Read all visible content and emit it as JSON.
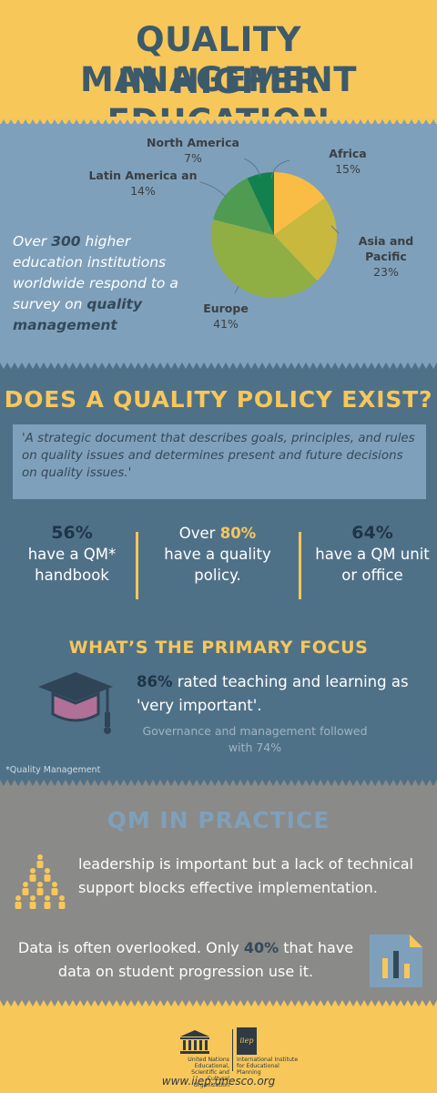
{
  "header": {
    "title_line1": "QUALITY MANAGEMENT",
    "title_line2": "IN HIGHER EDUCATION"
  },
  "survey": {
    "intro_pre": "Over ",
    "intro_num": "300",
    "intro_mid": " higher education institutions worldwide respond to a survey on ",
    "intro_bold": "quality management",
    "chart_data": {
      "type": "pie",
      "slices": [
        {
          "label": "Africa",
          "value_label": "15%",
          "value": 15,
          "color": "#f9bd45"
        },
        {
          "label": "Asia and Pacific",
          "value_label": "23%",
          "value": 23,
          "color": "#c8b83e"
        },
        {
          "label": "Europe",
          "value_label": "41%",
          "value": 41,
          "color": "#8fae43"
        },
        {
          "label": "Latin America an",
          "value_label": "14%",
          "value": 14,
          "color": "#4f9b52"
        },
        {
          "label": "North America",
          "value_label": "7%",
          "value": 7,
          "color": "#12814d"
        }
      ]
    }
  },
  "policy": {
    "title": "DOES A QUALITY POLICY EXIST?",
    "quote": "'A strategic document that describes goals, principles, and rules on quality issues and determines present and future decisions on quality issues.'",
    "stats": [
      {
        "num": "56%",
        "text_line1": "have a QM*",
        "text_line2": "handbook"
      },
      {
        "prefix": "Over ",
        "num": "80%",
        "text_line1": "have a quality",
        "text_line2": "policy."
      },
      {
        "num": "64%",
        "text_line1": "have a  QM unit",
        "text_line2": "or office"
      }
    ],
    "focus_title": "WHAT’S THE PRIMARY FOCUS",
    "focus_num": "86%",
    "focus_text": " rated teaching and learning as  'very important'.",
    "focus_sub": "Governance and management followed with 74%",
    "footnote": "*Quality Management"
  },
  "practice": {
    "title": "QM IN PRACTICE",
    "p1": "leadership is  important but a  lack of technical support blocks effective implementation.",
    "p2_pre": "Data is often overlooked. Only ",
    "p2_num": "40%",
    "p2_post": " that have data on student progression use it."
  },
  "footer": {
    "unesco_text": "United Nations Educational, Scientific and Cultural Organization",
    "iiep_text": "International Institute for Educational Planning",
    "iiep_logo_text": "iiep",
    "url": "www.iiep.unesco.org"
  },
  "colors": {
    "yellow": "#f7c75a",
    "steel_blue": "#7fa0ba",
    "dark_slate": "#4f7188",
    "gray": "#8a8a88",
    "navy": "#33495a"
  },
  "icons": [
    "graduation-cap-icon",
    "people-pyramid-icon",
    "bar-chart-document-icon",
    "unesco-temple-logo",
    "iiep-logo"
  ]
}
